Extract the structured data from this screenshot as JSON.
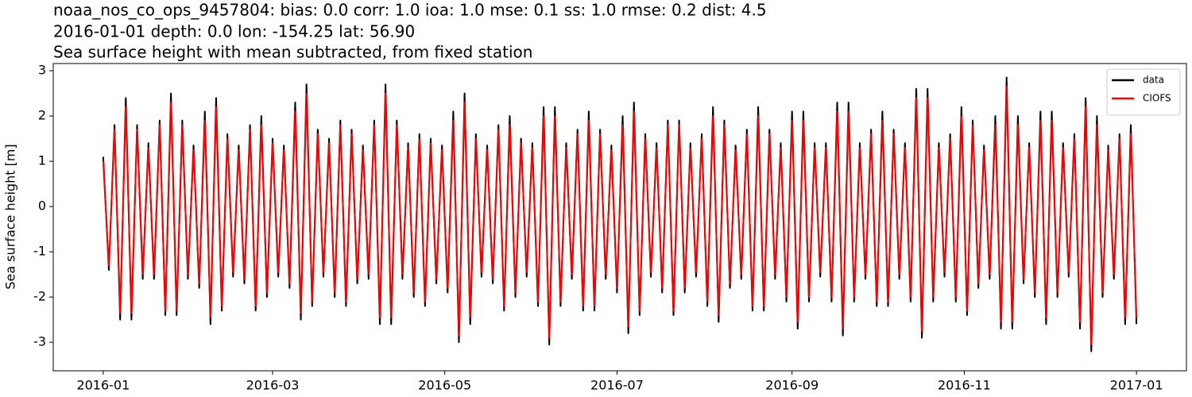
{
  "chart_data": {
    "type": "line",
    "title": [
      "noaa_nos_co_ops_9457804: bias: 0.0  corr: 1.0  ioa: 1.0  mse: 0.1  ss: 1.0  rmse: 0.2  dist: 4.5",
      "2016-01-01 depth: 0.0 lon: -154.25 lat: 56.90",
      "Sea surface height with mean subtracted, from fixed station"
    ],
    "ylabel": "Sea surface height [m]",
    "xlim": [
      -17.7,
      383.7
    ],
    "xticks": [
      {
        "value": 0,
        "label": "2016-01"
      },
      {
        "value": 60,
        "label": "2016-03"
      },
      {
        "value": 121,
        "label": "2016-05"
      },
      {
        "value": 182,
        "label": "2016-07"
      },
      {
        "value": 244,
        "label": "2016-09"
      },
      {
        "value": 305,
        "label": "2016-11"
      },
      {
        "value": 366,
        "label": "2017-01"
      }
    ],
    "ylim": [
      -3.63,
      3.16
    ],
    "yticks": [
      -3,
      -2,
      -1,
      0,
      1,
      2,
      3
    ],
    "grid": false,
    "legend": "upper right",
    "x": [
      0,
      2,
      4,
      6,
      8,
      10,
      12,
      14,
      16,
      18,
      20,
      22,
      24,
      26,
      28,
      30,
      32,
      34,
      36,
      38,
      40,
      42,
      44,
      46,
      48,
      50,
      52,
      54,
      56,
      58,
      60,
      62,
      64,
      66,
      68,
      70,
      72,
      74,
      76,
      78,
      80,
      82,
      84,
      86,
      88,
      90,
      92,
      94,
      96,
      98,
      100,
      102,
      104,
      106,
      108,
      110,
      112,
      114,
      116,
      118,
      120,
      122,
      124,
      126,
      128,
      130,
      132,
      134,
      136,
      138,
      140,
      142,
      144,
      146,
      148,
      150,
      152,
      154,
      156,
      158,
      160,
      162,
      164,
      166,
      168,
      170,
      172,
      174,
      176,
      178,
      180,
      182,
      184,
      186,
      188,
      190,
      192,
      194,
      196,
      198,
      200,
      202,
      204,
      206,
      208,
      210,
      212,
      214,
      216,
      218,
      220,
      222,
      224,
      226,
      228,
      230,
      232,
      234,
      236,
      238,
      240,
      242,
      244,
      246,
      248,
      250,
      252,
      254,
      256,
      258,
      260,
      262,
      264,
      266,
      268,
      270,
      272,
      274,
      276,
      278,
      280,
      282,
      284,
      286,
      288,
      290,
      292,
      294,
      296,
      298,
      300,
      302,
      304,
      306,
      308,
      310,
      312,
      314,
      316,
      318,
      320,
      322,
      324,
      326,
      328,
      330,
      332,
      334,
      336,
      338,
      340,
      342,
      344,
      346,
      348,
      350,
      352,
      354,
      356,
      358,
      360,
      362,
      364,
      366
    ],
    "series": [
      {
        "name": "data",
        "color": "#000000",
        "values": [
          1.1,
          -1.4,
          1.8,
          -2.5,
          2.4,
          -2.5,
          1.8,
          -1.6,
          1.4,
          -1.6,
          1.9,
          -2.4,
          2.5,
          -2.4,
          1.9,
          -1.6,
          1.35,
          -1.8,
          2.1,
          -2.6,
          2.4,
          -2.3,
          1.6,
          -1.55,
          1.35,
          -1.7,
          1.8,
          -2.3,
          2.0,
          -2.0,
          1.5,
          -1.55,
          1.35,
          -1.8,
          2.3,
          -2.5,
          2.7,
          -2.2,
          1.7,
          -1.55,
          1.5,
          -2.0,
          1.9,
          -2.2,
          1.7,
          -1.7,
          1.35,
          -1.6,
          1.9,
          -2.6,
          2.7,
          -2.6,
          1.9,
          -1.6,
          1.4,
          -2.0,
          1.6,
          -2.2,
          1.5,
          -1.7,
          1.35,
          -1.9,
          2.1,
          -3.0,
          2.5,
          -2.6,
          1.6,
          -1.55,
          1.35,
          -1.7,
          1.8,
          -2.3,
          2.0,
          -2.0,
          1.5,
          -1.55,
          1.4,
          -2.2,
          2.2,
          -3.05,
          2.2,
          -2.2,
          1.4,
          -1.6,
          1.7,
          -2.3,
          2.1,
          -2.3,
          1.7,
          -1.6,
          1.35,
          -1.9,
          2.0,
          -2.8,
          2.3,
          -2.4,
          1.6,
          -1.55,
          1.4,
          -1.9,
          1.9,
          -2.4,
          1.9,
          -1.9,
          1.4,
          -1.55,
          1.6,
          -2.2,
          2.2,
          -2.55,
          1.9,
          -1.8,
          1.35,
          -1.6,
          1.7,
          -2.3,
          2.2,
          -2.3,
          1.7,
          -1.6,
          1.4,
          -2.1,
          2.1,
          -2.7,
          2.1,
          -2.1,
          1.4,
          -1.55,
          1.4,
          -2.1,
          2.3,
          -2.85,
          2.3,
          -2.1,
          1.4,
          -1.6,
          1.7,
          -2.2,
          2.1,
          -2.2,
          1.7,
          -1.6,
          1.4,
          -2.1,
          2.6,
          -2.9,
          2.6,
          -2.1,
          1.4,
          -1.55,
          1.6,
          -2.1,
          2.2,
          -2.4,
          1.9,
          -1.8,
          1.35,
          -1.6,
          2.0,
          -2.7,
          2.85,
          -2.7,
          2.0,
          -1.7,
          1.4,
          -2.0,
          2.1,
          -2.6,
          2.1,
          -2.0,
          1.4,
          -1.55,
          1.6,
          -2.7,
          2.4,
          -3.2,
          2.0,
          -2.0,
          1.35,
          -1.6,
          1.6,
          -2.6,
          1.8,
          -2.6
        ]
      },
      {
        "name": "CIOFS",
        "color": "#ff0000",
        "values": [
          1.0,
          -1.3,
          1.7,
          -2.35,
          2.2,
          -2.35,
          1.7,
          -1.5,
          1.3,
          -1.5,
          1.8,
          -2.3,
          2.3,
          -2.3,
          1.8,
          -1.5,
          1.25,
          -1.7,
          1.9,
          -2.45,
          2.2,
          -2.2,
          1.5,
          -1.45,
          1.25,
          -1.6,
          1.7,
          -2.2,
          1.8,
          -1.9,
          1.4,
          -1.45,
          1.25,
          -1.7,
          2.1,
          -2.35,
          2.5,
          -2.1,
          1.6,
          -1.45,
          1.4,
          -1.9,
          1.8,
          -2.1,
          1.6,
          -1.6,
          1.25,
          -1.5,
          1.8,
          -2.45,
          2.5,
          -2.45,
          1.8,
          -1.5,
          1.3,
          -1.9,
          1.5,
          -2.1,
          1.4,
          -1.6,
          1.25,
          -1.8,
          1.9,
          -2.85,
          2.3,
          -2.45,
          1.5,
          -1.45,
          1.25,
          -1.6,
          1.7,
          -2.2,
          1.8,
          -1.9,
          1.4,
          -1.45,
          1.3,
          -2.1,
          2.0,
          -2.9,
          2.0,
          -2.1,
          1.3,
          -1.5,
          1.6,
          -2.2,
          1.9,
          -2.2,
          1.6,
          -1.5,
          1.25,
          -1.8,
          1.8,
          -2.65,
          2.1,
          -2.3,
          1.5,
          -1.45,
          1.3,
          -1.8,
          1.8,
          -2.3,
          1.8,
          -1.8,
          1.3,
          -1.45,
          1.5,
          -2.1,
          2.0,
          -2.4,
          1.8,
          -1.7,
          1.25,
          -1.5,
          1.6,
          -2.2,
          2.0,
          -2.2,
          1.6,
          -1.5,
          1.3,
          -2.0,
          1.9,
          -2.55,
          1.9,
          -2.0,
          1.3,
          -1.45,
          1.3,
          -2.0,
          2.1,
          -2.7,
          2.1,
          -2.0,
          1.3,
          -1.5,
          1.6,
          -2.1,
          1.9,
          -2.1,
          1.6,
          -1.5,
          1.3,
          -2.0,
          2.4,
          -2.75,
          2.4,
          -2.0,
          1.3,
          -1.45,
          1.5,
          -2.0,
          2.0,
          -2.3,
          1.8,
          -1.7,
          1.25,
          -1.5,
          1.8,
          -2.55,
          2.65,
          -2.55,
          1.8,
          -1.6,
          1.3,
          -1.9,
          1.9,
          -2.45,
          1.9,
          -1.9,
          1.3,
          -1.45,
          1.5,
          -2.55,
          2.2,
          -3.05,
          1.8,
          -1.9,
          1.25,
          -1.5,
          1.5,
          -2.45,
          1.6,
          -2.45
        ]
      }
    ]
  }
}
